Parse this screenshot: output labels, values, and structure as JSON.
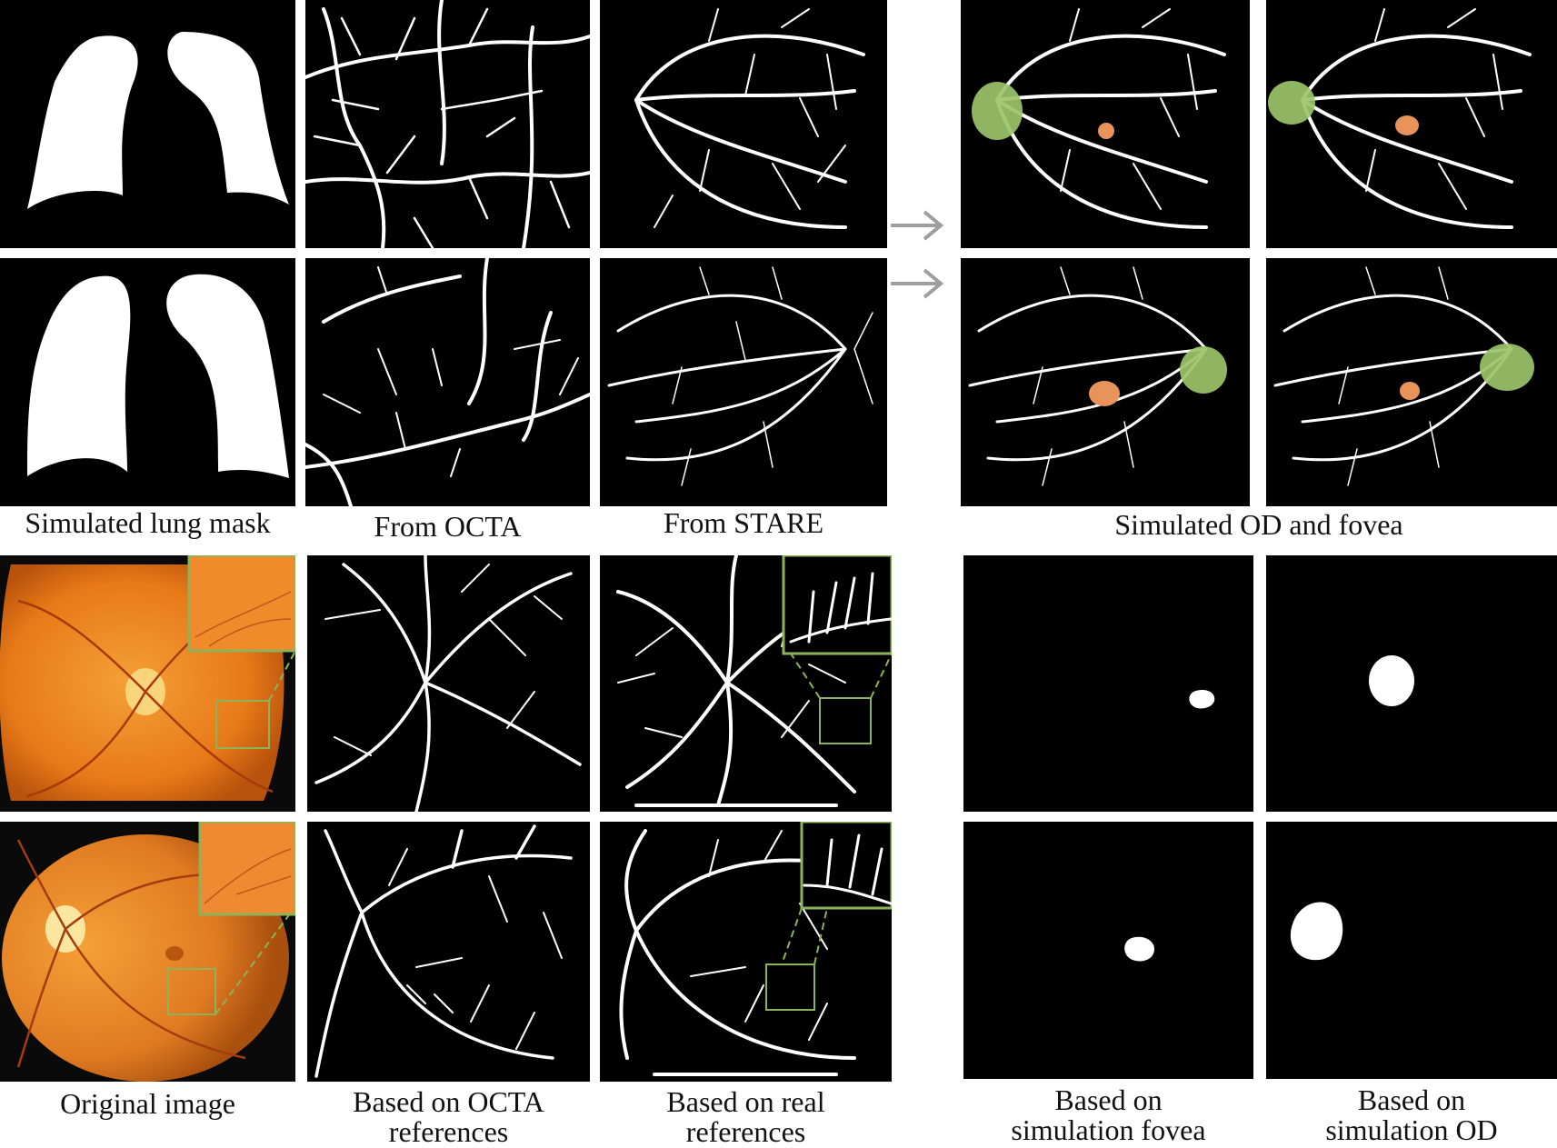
{
  "captions": {
    "lung_mask": "Simulated lung mask",
    "from_octa": "From OCTA",
    "from_stare": "From STARE",
    "od_fovea": "Simulated OD and fovea",
    "original": "Original image",
    "based_octa_line1": "Based on OCTA",
    "based_octa_line2": "references",
    "based_real_line1": "Based on real",
    "based_real_line2": "references",
    "sim_fovea_line1": "Based on",
    "sim_fovea_line2": "simulation fovea",
    "sim_od_line1": "Based on",
    "sim_od_line2": "simulation OD"
  },
  "colors": {
    "optic_disc_overlay": "#9bc46b",
    "fovea_overlay": "#e8935a",
    "zoom_box": "#8cb35a",
    "arrow": "#9e9e9e",
    "fundus_orange": "#e87a18"
  }
}
